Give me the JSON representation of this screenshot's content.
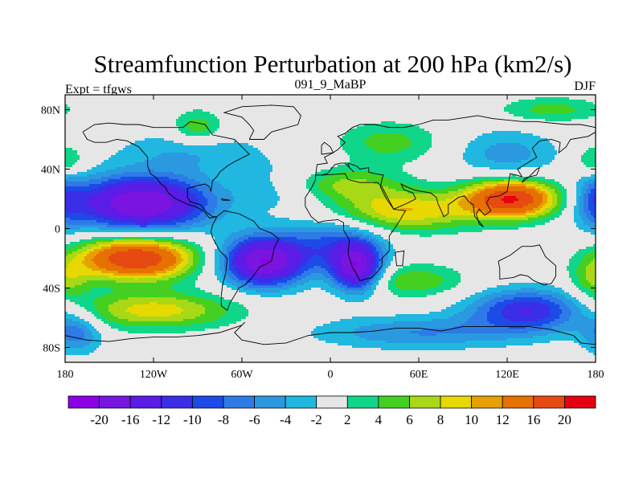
{
  "chart_data": {
    "type": "heatmap",
    "projection": "cylindrical-equidistant",
    "title": "Streamfunction Perturbation at 200 hPa (km2/s)",
    "left_string": "Expt = tfgws",
    "center_string": "091_9_MaBP",
    "right_string": "DJF",
    "xlim": [
      -180,
      180
    ],
    "ylim": [
      -90,
      90
    ],
    "x_ticks": [
      {
        "value": -180,
        "label": "180"
      },
      {
        "value": -120,
        "label": "120W"
      },
      {
        "value": -60,
        "label": "60W"
      },
      {
        "value": 0,
        "label": "0"
      },
      {
        "value": 60,
        "label": "60E"
      },
      {
        "value": 120,
        "label": "120E"
      },
      {
        "value": 180,
        "label": "180"
      }
    ],
    "y_ticks": [
      {
        "value": 80,
        "label": "80N"
      },
      {
        "value": 40,
        "label": "40N"
      },
      {
        "value": 0,
        "label": "0"
      },
      {
        "value": -40,
        "label": "40S"
      },
      {
        "value": -80,
        "label": "80S"
      }
    ],
    "colorbar": {
      "colors": [
        "#8b00e6",
        "#7a14e0",
        "#5a1ce6",
        "#3a2ee8",
        "#1c4be8",
        "#2e7ae6",
        "#2a99e0",
        "#20b8e0",
        "#e6e6e6",
        "#10d68a",
        "#44d020",
        "#a8d816",
        "#e6d800",
        "#e6a000",
        "#e67000",
        "#e64a10",
        "#e60010"
      ],
      "labels": [
        "-20",
        "-16",
        "-12",
        "-10",
        "-8",
        "-6",
        "-4",
        "-2",
        "2",
        "4",
        "6",
        "8",
        "10",
        "12",
        "16",
        "20"
      ]
    },
    "anomalies": [
      {
        "lon": -128,
        "lat": 17,
        "value": -20,
        "sx": 32,
        "sy": 13
      },
      {
        "lon": -45,
        "lat": -22,
        "value": -20,
        "sx": 20,
        "sy": 12
      },
      {
        "lon": 18,
        "lat": -27,
        "value": -18,
        "sx": 12,
        "sy": 11
      },
      {
        "lon": 5,
        "lat": -10,
        "value": -8,
        "sx": 22,
        "sy": 12
      },
      {
        "lon": -95,
        "lat": 52,
        "value": -4,
        "sx": 35,
        "sy": 10
      },
      {
        "lon": -30,
        "lat": 28,
        "value": -4,
        "sx": 25,
        "sy": 12
      },
      {
        "lon": 135,
        "lat": -55,
        "value": -12,
        "sx": 28,
        "sy": 10
      },
      {
        "lon": 60,
        "lat": -70,
        "value": -6,
        "sx": 50,
        "sy": 8
      },
      {
        "lon": 120,
        "lat": 50,
        "value": -5,
        "sx": 25,
        "sy": 12
      },
      {
        "lon": 180,
        "lat": 20,
        "value": -6,
        "sx": 10,
        "sy": 15
      },
      {
        "lon": -172,
        "lat": -70,
        "value": -7,
        "sx": 12,
        "sy": 10
      },
      {
        "lon": -132,
        "lat": -20,
        "value": 20,
        "sx": 28,
        "sy": 10
      },
      {
        "lon": -120,
        "lat": -55,
        "value": 9,
        "sx": 40,
        "sy": 9
      },
      {
        "lon": 123,
        "lat": 20,
        "value": 20,
        "sx": 22,
        "sy": 9
      },
      {
        "lon": 50,
        "lat": 12,
        "value": 10,
        "sx": 35,
        "sy": 10
      },
      {
        "lon": 5,
        "lat": 30,
        "value": 7,
        "sx": 28,
        "sy": 8
      },
      {
        "lon": 55,
        "lat": -35,
        "value": 6,
        "sx": 25,
        "sy": 8
      },
      {
        "lon": -90,
        "lat": 68,
        "value": 6,
        "sx": 12,
        "sy": 8
      },
      {
        "lon": -180,
        "lat": 45,
        "value": 6,
        "sx": 10,
        "sy": 8
      },
      {
        "lon": 180,
        "lat": -35,
        "value": 6,
        "sx": 12,
        "sy": 10
      },
      {
        "lon": 40,
        "lat": 58,
        "value": 5,
        "sx": 25,
        "sy": 10
      },
      {
        "lon": 150,
        "lat": 80,
        "value": 5,
        "sx": 25,
        "sy": 6
      }
    ],
    "coastlines": [
      [
        [
          -168,
          65
        ],
        [
          -160,
          70
        ],
        [
          -150,
          71
        ],
        [
          -140,
          70
        ],
        [
          -130,
          70
        ],
        [
          -120,
          68
        ],
        [
          -110,
          68
        ],
        [
          -100,
          68
        ],
        [
          -95,
          72
        ],
        [
          -85,
          70
        ],
        [
          -80,
          63
        ],
        [
          -75,
          62
        ],
        [
          -65,
          60
        ],
        [
          -60,
          55
        ],
        [
          -55,
          50
        ],
        [
          -65,
          45
        ],
        [
          -70,
          42
        ],
        [
          -75,
          38
        ],
        [
          -77,
          35
        ],
        [
          -80,
          32
        ],
        [
          -81,
          25
        ],
        [
          -82,
          28
        ],
        [
          -85,
          30
        ],
        [
          -90,
          29
        ],
        [
          -97,
          27
        ],
        [
          -97,
          21
        ],
        [
          -95,
          18
        ],
        [
          -88,
          16
        ],
        [
          -84,
          11
        ],
        [
          -80,
          8
        ],
        [
          -77,
          8
        ],
        [
          -82,
          7
        ],
        [
          -86,
          12
        ],
        [
          -92,
          15
        ],
        [
          -96,
          16
        ],
        [
          -105,
          20
        ],
        [
          -110,
          24
        ],
        [
          -112,
          28
        ],
        [
          -115,
          30
        ],
        [
          -118,
          34
        ],
        [
          -122,
          37
        ],
        [
          -124,
          42
        ],
        [
          -124,
          48
        ],
        [
          -130,
          55
        ],
        [
          -138,
          59
        ],
        [
          -145,
          60
        ],
        [
          -152,
          58
        ],
        [
          -160,
          58
        ],
        [
          -165,
          60
        ],
        [
          -168,
          65
        ]
      ],
      [
        [
          -77,
          8
        ],
        [
          -72,
          12
        ],
        [
          -62,
          10
        ],
        [
          -52,
          5
        ],
        [
          -48,
          0
        ],
        [
          -40,
          -3
        ],
        [
          -35,
          -7
        ],
        [
          -38,
          -13
        ],
        [
          -40,
          -22
        ],
        [
          -48,
          -26
        ],
        [
          -53,
          -33
        ],
        [
          -58,
          -38
        ],
        [
          -62,
          -40
        ],
        [
          -65,
          -45
        ],
        [
          -68,
          -50
        ],
        [
          -70,
          -55
        ],
        [
          -74,
          -52
        ],
        [
          -74,
          -45
        ],
        [
          -73,
          -37
        ],
        [
          -71,
          -30
        ],
        [
          -70,
          -20
        ],
        [
          -75,
          -15
        ],
        [
          -80,
          -6
        ],
        [
          -81,
          -2
        ],
        [
          -80,
          2
        ],
        [
          -77,
          8
        ]
      ],
      [
        [
          -10,
          36
        ],
        [
          -5,
          36
        ],
        [
          10,
          37
        ],
        [
          12,
          33
        ],
        [
          20,
          31
        ],
        [
          32,
          31
        ],
        [
          35,
          28
        ],
        [
          43,
          13
        ],
        [
          51,
          12
        ],
        [
          45,
          2
        ],
        [
          40,
          -5
        ],
        [
          40,
          -15
        ],
        [
          35,
          -20
        ],
        [
          35,
          -25
        ],
        [
          32,
          -29
        ],
        [
          28,
          -33
        ],
        [
          20,
          -35
        ],
        [
          18,
          -31
        ],
        [
          15,
          -26
        ],
        [
          12,
          -17
        ],
        [
          13,
          -8
        ],
        [
          9,
          -1
        ],
        [
          9,
          4
        ],
        [
          5,
          6
        ],
        [
          -5,
          5
        ],
        [
          -8,
          4
        ],
        [
          -13,
          8
        ],
        [
          -17,
          15
        ],
        [
          -17,
          21
        ],
        [
          -13,
          27
        ],
        [
          -10,
          33
        ],
        [
          -10,
          36
        ]
      ],
      [
        [
          -10,
          36
        ],
        [
          -9,
          43
        ],
        [
          -2,
          44
        ],
        [
          -4,
          48
        ],
        [
          0,
          50
        ],
        [
          5,
          53
        ],
        [
          8,
          56
        ],
        [
          10,
          58
        ],
        [
          5,
          62
        ],
        [
          10,
          64
        ],
        [
          15,
          68
        ],
        [
          20,
          70
        ],
        [
          30,
          70
        ],
        [
          40,
          68
        ],
        [
          50,
          68
        ],
        [
          60,
          70
        ],
        [
          70,
          73
        ],
        [
          80,
          73
        ],
        [
          100,
          76
        ],
        [
          110,
          74
        ],
        [
          130,
          72
        ],
        [
          140,
          72
        ],
        [
          160,
          70
        ],
        [
          170,
          70
        ],
        [
          180,
          68
        ],
        [
          180,
          65
        ],
        [
          175,
          62
        ],
        [
          163,
          60
        ],
        [
          160,
          55
        ],
        [
          155,
          51
        ],
        [
          156,
          58
        ],
        [
          150,
          60
        ],
        [
          142,
          59
        ],
        [
          137,
          54
        ],
        [
          140,
          48
        ],
        [
          132,
          43
        ],
        [
          127,
          40
        ],
        [
          130,
          35
        ],
        [
          122,
          37
        ],
        [
          121,
          31
        ],
        [
          120,
          25
        ],
        [
          115,
          22
        ],
        [
          108,
          21
        ],
        [
          106,
          17
        ],
        [
          109,
          12
        ],
        [
          105,
          9
        ],
        [
          101,
          13
        ],
        [
          99,
          10
        ],
        [
          101,
          3
        ],
        [
          104,
          1
        ],
        [
          100,
          6
        ],
        [
          98,
          8
        ],
        [
          97,
          16
        ],
        [
          94,
          18
        ],
        [
          91,
          22
        ],
        [
          87,
          21
        ],
        [
          80,
          16
        ],
        [
          80,
          10
        ],
        [
          77,
          8
        ],
        [
          73,
          17
        ],
        [
          72,
          21
        ],
        [
          68,
          24
        ],
        [
          62,
          25
        ],
        [
          57,
          26
        ],
        [
          52,
          28
        ],
        [
          48,
          30
        ],
        [
          50,
          26
        ],
        [
          56,
          24
        ],
        [
          58,
          20
        ],
        [
          52,
          17
        ],
        [
          43,
          13
        ],
        [
          38,
          20
        ],
        [
          34,
          28
        ],
        [
          35,
          33
        ],
        [
          36,
          36
        ],
        [
          30,
          37
        ],
        [
          26,
          38
        ],
        [
          26,
          41
        ],
        [
          20,
          40
        ],
        [
          18,
          42
        ],
        [
          12,
          44
        ],
        [
          13,
          41
        ],
        [
          16,
          38
        ],
        [
          10,
          44
        ],
        [
          7,
          44
        ],
        [
          3,
          43
        ],
        [
          -2,
          37
        ],
        [
          -6,
          36
        ],
        [
          -10,
          36
        ]
      ],
      [
        [
          114,
          -22
        ],
        [
          122,
          -18
        ],
        [
          130,
          -12
        ],
        [
          137,
          -12
        ],
        [
          142,
          -11
        ],
        [
          146,
          -19
        ],
        [
          153,
          -25
        ],
        [
          153,
          -32
        ],
        [
          150,
          -37
        ],
        [
          145,
          -38
        ],
        [
          138,
          -35
        ],
        [
          134,
          -32
        ],
        [
          129,
          -31
        ],
        [
          124,
          -33
        ],
        [
          115,
          -34
        ],
        [
          115,
          -27
        ],
        [
          114,
          -22
        ]
      ],
      [
        [
          -180,
          -72
        ],
        [
          -165,
          -75
        ],
        [
          -150,
          -76
        ],
        [
          -135,
          -74
        ],
        [
          -120,
          -73
        ],
        [
          -105,
          -73
        ],
        [
          -90,
          -72
        ],
        [
          -75,
          -70
        ],
        [
          -60,
          -65
        ],
        [
          -58,
          -63
        ],
        [
          -65,
          -70
        ],
        [
          -60,
          -75
        ],
        [
          -45,
          -78
        ],
        [
          -30,
          -77
        ],
        [
          -15,
          -72
        ],
        [
          0,
          -70
        ],
        [
          15,
          -70
        ],
        [
          30,
          -69
        ],
        [
          45,
          -67
        ],
        [
          60,
          -67
        ],
        [
          75,
          -69
        ],
        [
          90,
          -66
        ],
        [
          105,
          -66
        ],
        [
          120,
          -66
        ],
        [
          135,
          -66
        ],
        [
          150,
          -68
        ],
        [
          165,
          -72
        ],
        [
          170,
          -77
        ],
        [
          180,
          -78
        ]
      ],
      [
        [
          -55,
          60
        ],
        [
          -45,
          60
        ],
        [
          -40,
          65
        ],
        [
          -22,
          70
        ],
        [
          -20,
          76
        ],
        [
          -25,
          82
        ],
        [
          -40,
          83
        ],
        [
          -60,
          82
        ],
        [
          -72,
          78
        ],
        [
          -60,
          75
        ],
        [
          -55,
          70
        ],
        [
          -52,
          66
        ],
        [
          -55,
          60
        ]
      ],
      [
        [
          44,
          -16
        ],
        [
          50,
          -15
        ],
        [
          49,
          -25
        ],
        [
          45,
          -25
        ],
        [
          44,
          -16
        ]
      ],
      [
        [
          -6,
          50
        ],
        [
          2,
          51
        ],
        [
          0,
          55
        ],
        [
          -4,
          58
        ],
        [
          -6,
          56
        ],
        [
          -6,
          50
        ]
      ],
      [
        [
          130,
          31
        ],
        [
          132,
          34
        ],
        [
          140,
          36
        ],
        [
          142,
          41
        ],
        [
          140,
          40
        ],
        [
          135,
          35
        ],
        [
          130,
          31
        ]
      ],
      [
        [
          -74,
          20
        ],
        [
          -68,
          19
        ],
        [
          -73,
          19
        ],
        [
          -74,
          20
        ]
      ]
    ]
  }
}
